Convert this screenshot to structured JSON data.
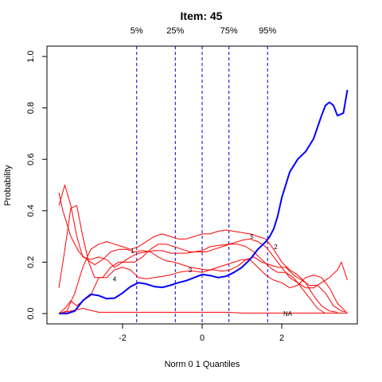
{
  "chart_data": {
    "type": "line",
    "title": "Item:  45",
    "xlabel": "Norm 0 1 Quantiles",
    "ylabel": "Probability",
    "xlim": [
      -3.6,
      3.8
    ],
    "ylim": [
      0,
      1.0
    ],
    "x_ticks": [
      -2,
      0,
      2
    ],
    "y_ticks": [
      0.0,
      0.2,
      0.4,
      0.6,
      0.8,
      1.0
    ],
    "quantile_lines": [
      {
        "label": "5%",
        "x": -1.645
      },
      {
        "label": "25%",
        "x": -0.674
      },
      {
        "label": "",
        "x": 0
      },
      {
        "label": "75%",
        "x": 0.674
      },
      {
        "label": "95%",
        "x": 1.645
      }
    ],
    "colors": {
      "key_series": "#0000ff",
      "option_series": "#ff0000",
      "quantile_line": "#0000cd"
    },
    "series": [
      {
        "name": "",
        "color": "#0000ff",
        "key": true,
        "points": [
          [
            -3.6,
            0.0
          ],
          [
            -3.4,
            0.0
          ],
          [
            -3.2,
            0.01
          ],
          [
            -3.0,
            0.05
          ],
          [
            -2.8,
            0.075
          ],
          [
            -2.6,
            0.07
          ],
          [
            -2.4,
            0.058
          ],
          [
            -2.2,
            0.06
          ],
          [
            -2.0,
            0.08
          ],
          [
            -1.8,
            0.105
          ],
          [
            -1.6,
            0.12
          ],
          [
            -1.4,
            0.115
          ],
          [
            -1.2,
            0.105
          ],
          [
            -1.0,
            0.102
          ],
          [
            -0.8,
            0.11
          ],
          [
            -0.6,
            0.12
          ],
          [
            -0.4,
            0.128
          ],
          [
            -0.2,
            0.14
          ],
          [
            0.0,
            0.152
          ],
          [
            0.2,
            0.148
          ],
          [
            0.4,
            0.14
          ],
          [
            0.6,
            0.145
          ],
          [
            0.8,
            0.16
          ],
          [
            1.0,
            0.18
          ],
          [
            1.2,
            0.21
          ],
          [
            1.4,
            0.25
          ],
          [
            1.6,
            0.28
          ],
          [
            1.7,
            0.3
          ],
          [
            1.8,
            0.33
          ],
          [
            1.9,
            0.38
          ],
          [
            2.0,
            0.45
          ],
          [
            2.2,
            0.55
          ],
          [
            2.4,
            0.6
          ],
          [
            2.6,
            0.63
          ],
          [
            2.8,
            0.68
          ],
          [
            3.0,
            0.77
          ],
          [
            3.1,
            0.81
          ],
          [
            3.2,
            0.822
          ],
          [
            3.3,
            0.81
          ],
          [
            3.4,
            0.77
          ],
          [
            3.55,
            0.78
          ],
          [
            3.65,
            0.87
          ]
        ]
      },
      {
        "name": "",
        "color": "#ff0000",
        "points": [
          [
            -3.6,
            0.47
          ],
          [
            -3.5,
            0.4
          ],
          [
            -3.3,
            0.3
          ],
          [
            -3.1,
            0.24
          ],
          [
            -2.9,
            0.21
          ],
          [
            -2.7,
            0.19
          ],
          [
            -2.5,
            0.21
          ],
          [
            -2.3,
            0.24
          ],
          [
            -2.1,
            0.25
          ],
          [
            -1.9,
            0.25
          ],
          [
            -1.7,
            0.24
          ],
          [
            -1.5,
            0.245
          ],
          [
            -1.3,
            0.24
          ],
          [
            -1.1,
            0.22
          ],
          [
            -0.9,
            0.205
          ],
          [
            -0.7,
            0.2
          ],
          [
            -0.5,
            0.19
          ],
          [
            -0.3,
            0.18
          ],
          [
            -0.1,
            0.175
          ],
          [
            0.1,
            0.17
          ],
          [
            0.3,
            0.17
          ],
          [
            0.5,
            0.165
          ],
          [
            0.7,
            0.17
          ],
          [
            0.9,
            0.185
          ],
          [
            1.1,
            0.21
          ],
          [
            1.3,
            0.22
          ],
          [
            1.5,
            0.2
          ],
          [
            1.7,
            0.19
          ],
          [
            1.9,
            0.18
          ],
          [
            2.1,
            0.18
          ],
          [
            2.3,
            0.15
          ],
          [
            2.5,
            0.13
          ],
          [
            2.7,
            0.11
          ],
          [
            2.9,
            0.11
          ],
          [
            3.1,
            0.08
          ],
          [
            3.3,
            0.03
          ],
          [
            3.5,
            0.01
          ],
          [
            3.65,
            0.005
          ]
        ]
      },
      {
        "name": "",
        "color": "#ff0000",
        "points": [
          [
            -3.6,
            0.42
          ],
          [
            -3.45,
            0.5
          ],
          [
            -3.3,
            0.42
          ],
          [
            -3.15,
            0.3
          ],
          [
            -3.0,
            0.22
          ],
          [
            -2.8,
            0.21
          ],
          [
            -2.6,
            0.22
          ],
          [
            -2.4,
            0.21
          ],
          [
            -2.2,
            0.18
          ],
          [
            -2.0,
            0.2
          ],
          [
            -1.8,
            0.22
          ],
          [
            -1.6,
            0.235
          ],
          [
            -1.4,
            0.24
          ],
          [
            -1.2,
            0.245
          ],
          [
            -1.0,
            0.245
          ],
          [
            -0.8,
            0.235
          ],
          [
            -0.6,
            0.235
          ],
          [
            -0.4,
            0.235
          ],
          [
            -0.2,
            0.24
          ],
          [
            0.0,
            0.245
          ],
          [
            0.2,
            0.26
          ],
          [
            0.4,
            0.265
          ],
          [
            0.6,
            0.268
          ],
          [
            0.8,
            0.275
          ],
          [
            1.0,
            0.285
          ],
          [
            1.2,
            0.29
          ],
          [
            1.4,
            0.28
          ],
          [
            1.6,
            0.26
          ],
          [
            1.8,
            0.22
          ],
          [
            2.0,
            0.18
          ],
          [
            2.2,
            0.14
          ],
          [
            2.4,
            0.12
          ],
          [
            2.6,
            0.1
          ],
          [
            2.8,
            0.1
          ],
          [
            3.0,
            0.12
          ],
          [
            3.2,
            0.14
          ],
          [
            3.4,
            0.17
          ],
          [
            3.5,
            0.2
          ],
          [
            3.65,
            0.13
          ]
        ]
      },
      {
        "name": "",
        "color": "#ff0000",
        "points": [
          [
            -3.6,
            0.0
          ],
          [
            -3.45,
            0.02
          ],
          [
            -3.3,
            0.05
          ],
          [
            -3.15,
            0.03
          ],
          [
            -3.0,
            0.05
          ],
          [
            -2.8,
            0.07
          ],
          [
            -2.6,
            0.14
          ],
          [
            -2.4,
            0.14
          ],
          [
            -2.2,
            0.17
          ],
          [
            -2.0,
            0.18
          ],
          [
            -1.8,
            0.17
          ],
          [
            -1.6,
            0.14
          ],
          [
            -1.4,
            0.135
          ],
          [
            -1.2,
            0.14
          ],
          [
            -1.0,
            0.145
          ],
          [
            -0.8,
            0.15
          ],
          [
            -0.6,
            0.16
          ],
          [
            -0.4,
            0.165
          ],
          [
            -0.2,
            0.165
          ],
          [
            0.0,
            0.16
          ],
          [
            0.2,
            0.17
          ],
          [
            0.4,
            0.18
          ],
          [
            0.6,
            0.19
          ],
          [
            0.8,
            0.2
          ],
          [
            1.0,
            0.21
          ],
          [
            1.2,
            0.21
          ],
          [
            1.4,
            0.18
          ],
          [
            1.6,
            0.15
          ],
          [
            1.8,
            0.13
          ],
          [
            2.0,
            0.12
          ],
          [
            2.2,
            0.1
          ],
          [
            2.4,
            0.11
          ],
          [
            2.6,
            0.14
          ],
          [
            2.8,
            0.15
          ],
          [
            3.0,
            0.14
          ],
          [
            3.2,
            0.1
          ],
          [
            3.4,
            0.04
          ],
          [
            3.6,
            0.01
          ]
        ]
      },
      {
        "name": "",
        "color": "#ff0000",
        "points": [
          [
            -3.6,
            0.0
          ],
          [
            -3.4,
            0.01
          ],
          [
            -3.2,
            0.08
          ],
          [
            -3.0,
            0.18
          ],
          [
            -2.8,
            0.25
          ],
          [
            -2.6,
            0.27
          ],
          [
            -2.4,
            0.28
          ],
          [
            -2.2,
            0.27
          ],
          [
            -2.0,
            0.26
          ],
          [
            -1.8,
            0.25
          ],
          [
            -1.6,
            0.26
          ],
          [
            -1.4,
            0.28
          ],
          [
            -1.2,
            0.3
          ],
          [
            -1.0,
            0.31
          ],
          [
            -0.8,
            0.3
          ],
          [
            -0.6,
            0.29
          ],
          [
            -0.4,
            0.29
          ],
          [
            -0.2,
            0.3
          ],
          [
            0.0,
            0.31
          ],
          [
            0.2,
            0.31
          ],
          [
            0.4,
            0.32
          ],
          [
            0.6,
            0.325
          ],
          [
            0.8,
            0.32
          ],
          [
            1.0,
            0.315
          ],
          [
            1.2,
            0.31
          ],
          [
            1.4,
            0.3
          ],
          [
            1.6,
            0.29
          ],
          [
            1.8,
            0.25
          ],
          [
            2.0,
            0.2
          ],
          [
            2.2,
            0.17
          ],
          [
            2.4,
            0.15
          ],
          [
            2.6,
            0.12
          ],
          [
            2.8,
            0.07
          ],
          [
            3.0,
            0.03
          ],
          [
            3.2,
            0.01
          ],
          [
            3.4,
            0.005
          ]
        ]
      },
      {
        "name": "",
        "color": "#ff0000",
        "points": [
          [
            -3.6,
            0.1
          ],
          [
            -3.45,
            0.25
          ],
          [
            -3.3,
            0.41
          ],
          [
            -3.15,
            0.42
          ],
          [
            -3.0,
            0.3
          ],
          [
            -2.85,
            0.2
          ],
          [
            -2.7,
            0.14
          ],
          [
            -2.5,
            0.14
          ],
          [
            -2.3,
            0.18
          ],
          [
            -2.1,
            0.2
          ],
          [
            -1.9,
            0.2
          ],
          [
            -1.7,
            0.2
          ],
          [
            -1.5,
            0.22
          ],
          [
            -1.3,
            0.25
          ],
          [
            -1.1,
            0.27
          ],
          [
            -0.9,
            0.27
          ],
          [
            -0.7,
            0.26
          ],
          [
            -0.5,
            0.25
          ],
          [
            -0.3,
            0.24
          ],
          [
            -0.1,
            0.24
          ],
          [
            0.1,
            0.24
          ],
          [
            0.3,
            0.25
          ],
          [
            0.5,
            0.26
          ],
          [
            0.7,
            0.27
          ],
          [
            0.9,
            0.27
          ],
          [
            1.1,
            0.26
          ],
          [
            1.3,
            0.24
          ],
          [
            1.5,
            0.21
          ],
          [
            1.7,
            0.18
          ],
          [
            1.9,
            0.16
          ],
          [
            2.1,
            0.16
          ],
          [
            2.3,
            0.14
          ],
          [
            2.5,
            0.1
          ],
          [
            2.7,
            0.06
          ],
          [
            2.9,
            0.02
          ],
          [
            3.1,
            0.0
          ]
        ]
      },
      {
        "name": "",
        "color": "#ff0000",
        "points": [
          [
            -3.6,
            0.0
          ],
          [
            -3.3,
            0.01
          ],
          [
            -3.0,
            0.02
          ],
          [
            -2.6,
            0.005
          ],
          [
            -2.2,
            0.005
          ],
          [
            -1.8,
            0.005
          ],
          [
            -1.4,
            0.005
          ],
          [
            -1.0,
            0.005
          ],
          [
            -0.6,
            0.005
          ],
          [
            -0.2,
            0.005
          ],
          [
            0.2,
            0.005
          ],
          [
            0.6,
            0.005
          ],
          [
            1.0,
            0.002
          ],
          [
            1.5,
            0.002
          ],
          [
            2.0,
            0.002
          ],
          [
            2.5,
            0.002
          ],
          [
            3.0,
            0.002
          ],
          [
            3.5,
            0.002
          ],
          [
            3.65,
            0.002
          ]
        ]
      }
    ],
    "curve_labels": [
      {
        "text": "1",
        "x": -1.75,
        "y": 0.245
      },
      {
        "text": "2",
        "x": 1.85,
        "y": 0.26
      },
      {
        "text": "3",
        "x": -0.3,
        "y": 0.17
      },
      {
        "text": "4",
        "x": -2.2,
        "y": 0.135
      },
      {
        "text": "5",
        "x": 1.25,
        "y": 0.3
      },
      {
        "text": "NA",
        "x": 2.15,
        "y": 0.0
      }
    ]
  }
}
